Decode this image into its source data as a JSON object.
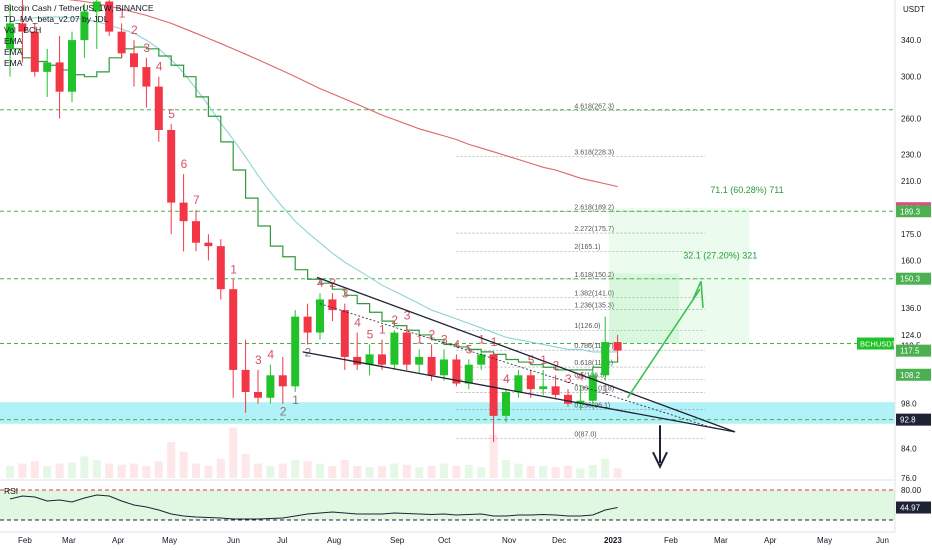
{
  "legend": {
    "title": "Bitcoin Cash / TetherUS, 1W, BINANCE",
    "indicators": [
      "TD_MA_beta_v2.07 by JDL",
      "Vol · BCH",
      "EMA",
      "EMA",
      "EMA"
    ]
  },
  "rsi_label": "RSI",
  "colors": {
    "up": "#22c32a",
    "down": "#f23645",
    "fib_line": "#777777",
    "level_green": "#4caf50",
    "support_band": "#6fe8f2",
    "ema_fast": "#2e9a3c",
    "ema_mid": "#8fd3d3",
    "ema_slow": "#e06666",
    "trend": "#1e2235",
    "arrow_up": "#3fbf55",
    "arrow_down": "#1e2235"
  },
  "chart_data": {
    "type": "candlestick",
    "symbol": "BCHUSDT",
    "price_axis": {
      "unit": "USDT",
      "ylim": [
        76.0,
        390.0
      ],
      "ticks": [
        "340.0",
        "300.0",
        "260.0",
        "230.0",
        "210.0",
        "175.0",
        "160.0",
        "136.0",
        "124.0",
        "119.5",
        "98.0",
        "84.0",
        "76.0"
      ]
    },
    "time_axis": {
      "labels": [
        "Feb",
        "Mar",
        "Apr",
        "May",
        "Jun",
        "Jul",
        "Aug",
        "Sep",
        "Oct",
        "Nov",
        "Dec",
        "2023",
        "Feb",
        "Mar",
        "Apr",
        "May",
        "Jun"
      ]
    },
    "candles": [
      {
        "o": 330,
        "h": 385,
        "l": 300,
        "c": 360
      },
      {
        "o": 360,
        "h": 395,
        "l": 315,
        "c": 350
      },
      {
        "o": 350,
        "h": 360,
        "l": 300,
        "c": 305
      },
      {
        "o": 305,
        "h": 330,
        "l": 280,
        "c": 315
      },
      {
        "o": 315,
        "h": 345,
        "l": 260,
        "c": 285
      },
      {
        "o": 285,
        "h": 350,
        "l": 275,
        "c": 340
      },
      {
        "o": 340,
        "h": 385,
        "l": 320,
        "c": 375
      },
      {
        "o": 375,
        "h": 395,
        "l": 330,
        "c": 388
      },
      {
        "o": 388,
        "h": 395,
        "l": 345,
        "c": 350
      },
      {
        "o": 350,
        "h": 360,
        "l": 320,
        "c": 325
      },
      {
        "o": 325,
        "h": 340,
        "l": 290,
        "c": 310
      },
      {
        "o": 310,
        "h": 320,
        "l": 270,
        "c": 290
      },
      {
        "o": 290,
        "h": 300,
        "l": 240,
        "c": 250
      },
      {
        "o": 250,
        "h": 255,
        "l": 175,
        "c": 195
      },
      {
        "o": 195,
        "h": 215,
        "l": 165,
        "c": 183
      },
      {
        "o": 183,
        "h": 190,
        "l": 165,
        "c": 170
      },
      {
        "o": 170,
        "h": 175,
        "l": 160,
        "c": 168
      },
      {
        "o": 168,
        "h": 172,
        "l": 140,
        "c": 145
      },
      {
        "o": 145,
        "h": 150,
        "l": 100,
        "c": 110
      },
      {
        "o": 110,
        "h": 122,
        "l": 95,
        "c": 102
      },
      {
        "o": 102,
        "h": 110,
        "l": 98,
        "c": 100
      },
      {
        "o": 100,
        "h": 112,
        "l": 98,
        "c": 108
      },
      {
        "o": 108,
        "h": 115,
        "l": 98,
        "c": 104
      },
      {
        "o": 104,
        "h": 135,
        "l": 102,
        "c": 132
      },
      {
        "o": 132,
        "h": 138,
        "l": 120,
        "c": 125
      },
      {
        "o": 125,
        "h": 143,
        "l": 122,
        "c": 140
      },
      {
        "o": 140,
        "h": 143,
        "l": 130,
        "c": 135
      },
      {
        "o": 135,
        "h": 138,
        "l": 110,
        "c": 115
      },
      {
        "o": 115,
        "h": 125,
        "l": 110,
        "c": 112
      },
      {
        "o": 112,
        "h": 120,
        "l": 108,
        "c": 116
      },
      {
        "o": 116,
        "h": 122,
        "l": 110,
        "c": 112
      },
      {
        "o": 112,
        "h": 126,
        "l": 110,
        "c": 125
      },
      {
        "o": 125,
        "h": 128,
        "l": 110,
        "c": 112
      },
      {
        "o": 112,
        "h": 118,
        "l": 109,
        "c": 115
      },
      {
        "o": 115,
        "h": 120,
        "l": 106,
        "c": 108
      },
      {
        "o": 108,
        "h": 118,
        "l": 106,
        "c": 114
      },
      {
        "o": 114,
        "h": 116,
        "l": 104,
        "c": 105
      },
      {
        "o": 105,
        "h": 114,
        "l": 103,
        "c": 112
      },
      {
        "o": 112,
        "h": 118,
        "l": 110,
        "c": 116
      },
      {
        "o": 116,
        "h": 117,
        "l": 86,
        "c": 94
      },
      {
        "o": 94,
        "h": 103,
        "l": 92,
        "c": 102
      },
      {
        "o": 102,
        "h": 110,
        "l": 100,
        "c": 108
      },
      {
        "o": 108,
        "h": 110,
        "l": 100,
        "c": 103
      },
      {
        "o": 103,
        "h": 110,
        "l": 101,
        "c": 104
      },
      {
        "o": 104,
        "h": 108,
        "l": 100,
        "c": 101
      },
      {
        "o": 101,
        "h": 103,
        "l": 97,
        "c": 98
      },
      {
        "o": 98,
        "h": 104,
        "l": 96,
        "c": 99
      },
      {
        "o": 99,
        "h": 110,
        "l": 97,
        "c": 108
      },
      {
        "o": 108,
        "h": 132,
        "l": 106,
        "c": 121
      },
      {
        "o": 121,
        "h": 124,
        "l": 114,
        "c": 117.5
      }
    ],
    "td_counts": [
      {
        "i": 6,
        "t": "5",
        "up": true
      },
      {
        "i": 9,
        "t": "1",
        "up": true
      },
      {
        "i": 10,
        "t": "2",
        "up": true
      },
      {
        "i": 11,
        "t": "3",
        "up": true
      },
      {
        "i": 12,
        "t": "4",
        "up": true
      },
      {
        "i": 13,
        "t": "5",
        "up": true
      },
      {
        "i": 14,
        "t": "6",
        "up": true
      },
      {
        "i": 15,
        "t": "7",
        "up": true
      },
      {
        "i": 18,
        "t": "1",
        "up": true
      },
      {
        "i": 20,
        "t": "3",
        "up": true
      },
      {
        "i": 21,
        "t": "4",
        "up": true
      },
      {
        "i": 22,
        "t": "2",
        "up": false
      },
      {
        "i": 23,
        "t": "1",
        "up": false
      },
      {
        "i": 24,
        "t": "2",
        "up": false
      },
      {
        "i": 25,
        "t": "4",
        "up": true
      },
      {
        "i": 26,
        "t": "2",
        "up": true
      },
      {
        "i": 27,
        "t": "3",
        "up": true
      },
      {
        "i": 28,
        "t": "4",
        "up": true
      },
      {
        "i": 29,
        "t": "5",
        "up": true
      },
      {
        "i": 30,
        "t": "1",
        "up": true
      },
      {
        "i": 31,
        "t": "2",
        "up": true
      },
      {
        "i": 32,
        "t": "3",
        "up": true
      },
      {
        "i": 33,
        "t": "1",
        "up": true
      },
      {
        "i": 34,
        "t": "2",
        "up": true
      },
      {
        "i": 35,
        "t": "3",
        "up": true
      },
      {
        "i": 36,
        "t": "4",
        "up": true
      },
      {
        "i": 37,
        "t": "5",
        "up": true
      },
      {
        "i": 38,
        "t": "1",
        "up": true
      },
      {
        "i": 39,
        "t": "1",
        "up": true
      },
      {
        "i": 40,
        "t": "4",
        "up": true
      },
      {
        "i": 42,
        "t": "5",
        "up": true
      },
      {
        "i": 43,
        "t": "1",
        "up": true
      },
      {
        "i": 44,
        "t": "2",
        "up": true
      },
      {
        "i": 45,
        "t": "3",
        "up": true
      },
      {
        "i": 46,
        "t": "4",
        "up": true
      },
      {
        "i": 48,
        "t": "1",
        "up": false
      }
    ],
    "fib_levels": [
      {
        "label": "4.618(267.3)",
        "price": 267.3,
        "t0": 36
      },
      {
        "label": "3.618(228.3)",
        "price": 228.3,
        "t0": 36
      },
      {
        "label": "2.618(189.2)",
        "price": 189.2,
        "t0": 36
      },
      {
        "label": "2.272(175.7)",
        "price": 175.7,
        "t0": 36
      },
      {
        "label": "2(165.1)",
        "price": 165.1,
        "t0": 36
      },
      {
        "label": "1.618(150.2)",
        "price": 150.2,
        "t0": 36
      },
      {
        "label": "1.382(141.0)",
        "price": 141.0,
        "t0": 36
      },
      {
        "label": "1.236(135.3)",
        "price": 135.3,
        "t0": 36
      },
      {
        "label": "1(126.0)",
        "price": 126.0,
        "t0": 36
      },
      {
        "label": "0.786(117.7)",
        "price": 117.7,
        "t0": 36
      },
      {
        "label": "0.618(111.1)",
        "price": 111.1,
        "t0": 36
      },
      {
        "label": "0.5(106.5)",
        "price": 106.5,
        "t0": 36
      },
      {
        "label": "0.382(101.8)",
        "price": 101.8,
        "t0": 36
      },
      {
        "label": "0.236(96.1)",
        "price": 96.1,
        "t0": 36
      },
      {
        "label": "0(87.0)",
        "price": 87.0,
        "t0": 36
      }
    ],
    "horizontal_levels": [
      {
        "price": 267.9,
        "label": "267.9"
      },
      {
        "price": 189.3,
        "label": "189.3"
      },
      {
        "price": 150.3,
        "label": "150.3"
      },
      {
        "price": 120.4,
        "label": ""
      },
      {
        "price": 92.8,
        "label": "92.8"
      }
    ],
    "price_tags": [
      {
        "price": 191.3,
        "label": "191.3",
        "color": "#e04a8a"
      },
      {
        "price": 189.3,
        "label": "189.3",
        "color": "#4caf50"
      },
      {
        "price": 150.3,
        "label": "150.3",
        "color": "#4caf50"
      },
      {
        "price": 117.5,
        "label": "117.5",
        "color": "#4caf50"
      },
      {
        "price": 108.2,
        "label": "108.2",
        "color": "#4caf50"
      },
      {
        "price": 92.8,
        "label": "92.8",
        "color": "#1e2235"
      }
    ],
    "symbol_tag": {
      "price": 120.4,
      "label": "BCHUSDT"
    },
    "targets": [
      {
        "label": "71.1 (60.28%) 711",
        "price": 191.3
      },
      {
        "label": "32.1 (27.20%) 321",
        "price": 153.0
      }
    ],
    "ema_fast": [
      330,
      320,
      316,
      312,
      307,
      302,
      300,
      305,
      320,
      330,
      332,
      330,
      322,
      312,
      300,
      280,
      262,
      240,
      218,
      198,
      180,
      168,
      162,
      155,
      150,
      148,
      145,
      142,
      138,
      134,
      130,
      128,
      126,
      124,
      122,
      120,
      119,
      118,
      117,
      116,
      114,
      113,
      112,
      111,
      110,
      110,
      110,
      111,
      113,
      115
    ],
    "ema_mid": [
      362,
      365,
      367,
      368,
      368,
      367,
      365,
      362,
      358,
      353,
      348,
      340,
      330,
      318,
      304,
      288,
      272,
      256,
      242,
      228,
      214,
      202,
      192,
      183,
      176,
      170,
      164,
      159,
      155,
      151,
      147,
      144,
      141,
      138,
      135,
      133,
      131,
      129,
      127,
      125,
      123,
      122,
      121,
      120,
      119,
      118,
      118,
      117,
      117,
      117
    ],
    "ema_slow": [
      395,
      395,
      394,
      393,
      392,
      390,
      388,
      385,
      382,
      378,
      374,
      370,
      365,
      360,
      354,
      348,
      342,
      336,
      330,
      324,
      318,
      312,
      306,
      300,
      294,
      288,
      283,
      278,
      273,
      268,
      263,
      259,
      255,
      251,
      248,
      245,
      242,
      238,
      235,
      232,
      229,
      226,
      223,
      220,
      218,
      215,
      212,
      210,
      208,
      206
    ],
    "volume": [
      0.1,
      0.12,
      0.14,
      0.1,
      0.12,
      0.13,
      0.18,
      0.15,
      0.12,
      0.11,
      0.12,
      0.1,
      0.14,
      0.3,
      0.22,
      0.12,
      0.1,
      0.16,
      0.42,
      0.2,
      0.12,
      0.1,
      0.12,
      0.15,
      0.14,
      0.12,
      0.1,
      0.15,
      0.1,
      0.09,
      0.1,
      0.12,
      0.11,
      0.09,
      0.1,
      0.12,
      0.1,
      0.11,
      0.09,
      0.36,
      0.15,
      0.12,
      0.1,
      0.1,
      0.09,
      0.1,
      0.08,
      0.11,
      0.16,
      0.08
    ],
    "rsi": {
      "ylim": [
        0,
        100
      ],
      "upper": 80,
      "lower": 20,
      "last_label": "44.97",
      "last": 44.97,
      "values": [
        62,
        68,
        66,
        58,
        60,
        56,
        64,
        70,
        68,
        58,
        50,
        46,
        40,
        32,
        28,
        26,
        25,
        24,
        22,
        22,
        22,
        23,
        24,
        28,
        32,
        34,
        36,
        34,
        32,
        32,
        32,
        34,
        33,
        32,
        31,
        32,
        30,
        31,
        32,
        28,
        28,
        30,
        30,
        31,
        30,
        28,
        28,
        30,
        40,
        45
      ]
    }
  }
}
